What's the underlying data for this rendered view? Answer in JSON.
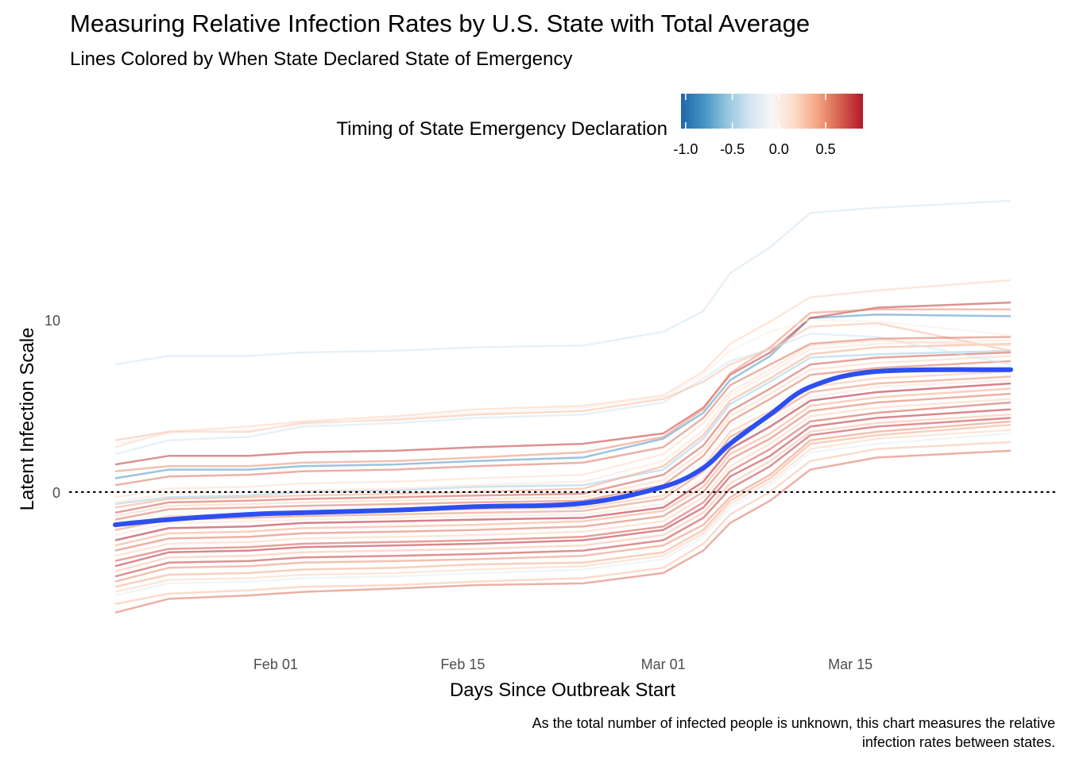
{
  "title": "Measuring Relative Infection Rates by U.S. State with Total Average",
  "subtitle": "Lines Colored by When State Declared State of Emergency",
  "caption_lines": [
    "As the total number of infected people is unknown, this chart measures the relative",
    "infection rates between states."
  ],
  "chart_data": {
    "type": "line",
    "title": "Measuring Relative Infection Rates by U.S. State with Total Average",
    "subtitle": "Lines Colored by When State Declared State of Emergency",
    "xlabel": "Days Since Outbreak Start",
    "ylabel": "Latent Infection Scale",
    "x_ticks": [
      {
        "date": "2020-02-01",
        "label": "Feb 01"
      },
      {
        "date": "2020-02-15",
        "label": "Feb 15"
      },
      {
        "date": "2020-03-01",
        "label": "Mar 01"
      },
      {
        "date": "2020-03-15",
        "label": "Mar 15"
      }
    ],
    "y_ticks": [
      0,
      10
    ],
    "xlim": [
      "2020-01-20",
      "2020-03-27"
    ],
    "ylim": [
      -8.3,
      17.5
    ],
    "reference_line": {
      "y": 0,
      "style": "dotted",
      "color": "#000000"
    },
    "grid": false,
    "legend": {
      "title": "Timing of State Emergency Declaration",
      "position": "top",
      "type": "colorbar",
      "ticks": [
        -1.0,
        -0.5,
        0.0,
        0.5
      ],
      "tick_labels": [
        "-1.0",
        "-0.5",
        "0.0",
        "0.5"
      ],
      "range": [
        -1.05,
        0.9
      ],
      "colors": [
        "#2166ac",
        "#4393c3",
        "#92c5de",
        "#d1e5f0",
        "#f7f7f7",
        "#fddbc7",
        "#f4a582",
        "#d6604d",
        "#b2182b"
      ]
    },
    "dates": [
      "2020-01-20",
      "2020-01-24",
      "2020-01-30",
      "2020-02-03",
      "2020-02-10",
      "2020-02-16",
      "2020-02-24",
      "2020-03-01",
      "2020-03-04",
      "2020-03-06",
      "2020-03-09",
      "2020-03-12",
      "2020-03-17",
      "2020-03-27"
    ],
    "average": {
      "name": "Total Average",
      "color": "#2d4ff0",
      "values": [
        -1.9,
        -1.6,
        -1.3,
        -1.2,
        -1.05,
        -0.85,
        -0.65,
        0.3,
        1.4,
        2.8,
        4.5,
        6.1,
        7.0,
        7.1
      ]
    },
    "series": [
      {
        "timing": -0.3,
        "values": [
          7.4,
          7.9,
          7.9,
          8.1,
          8.2,
          8.4,
          8.5,
          9.3,
          10.5,
          12.7,
          14.2,
          16.2,
          16.5,
          16.9
        ]
      },
      {
        "timing": 0.6,
        "values": [
          -7.0,
          -6.2,
          -6.0,
          -5.8,
          -5.6,
          -5.4,
          -5.3,
          -4.7,
          -3.4,
          -1.8,
          -0.5,
          1.3,
          2.0,
          2.4
        ]
      },
      {
        "timing": 0.3,
        "values": [
          -6.5,
          -5.9,
          -5.7,
          -5.5,
          -5.4,
          -5.2,
          -5.0,
          -4.4,
          -3.0,
          -1.3,
          0.0,
          1.8,
          2.5,
          2.9
        ]
      },
      {
        "timing": -0.2,
        "values": [
          -6.0,
          -5.3,
          -5.2,
          -5.0,
          -4.9,
          -4.7,
          -4.5,
          -3.9,
          -2.6,
          -0.9,
          0.4,
          2.3,
          2.8,
          3.4
        ]
      },
      {
        "timing": 0.2,
        "values": [
          -5.8,
          -5.1,
          -5.0,
          -4.8,
          -4.7,
          -4.5,
          -4.3,
          -3.7,
          -2.4,
          -0.7,
          0.6,
          2.5,
          3.1,
          3.6
        ]
      },
      {
        "timing": 0.4,
        "values": [
          -5.5,
          -4.8,
          -4.7,
          -4.5,
          -4.4,
          -4.2,
          -4.1,
          -3.5,
          -2.2,
          -0.5,
          0.8,
          2.8,
          3.3,
          3.9
        ]
      },
      {
        "timing": 0.5,
        "values": [
          -5.2,
          -4.4,
          -4.3,
          -4.1,
          -4.0,
          -3.9,
          -3.7,
          -3.1,
          -1.9,
          -0.3,
          1.0,
          3.0,
          3.5,
          4.1
        ]
      },
      {
        "timing": 0.8,
        "values": [
          -4.9,
          -4.1,
          -4.0,
          -3.8,
          -3.7,
          -3.6,
          -3.4,
          -2.8,
          -1.5,
          0.2,
          1.5,
          3.3,
          3.8,
          4.3
        ]
      },
      {
        "timing": 0.3,
        "values": [
          -4.6,
          -3.8,
          -3.7,
          -3.5,
          -3.4,
          -3.3,
          -3.1,
          -2.5,
          -1.2,
          0.5,
          1.8,
          3.5,
          4.0,
          4.5
        ]
      },
      {
        "timing": 0.85,
        "values": [
          -4.3,
          -3.5,
          -3.4,
          -3.2,
          -3.1,
          -3.0,
          -2.8,
          -2.2,
          -0.9,
          0.9,
          2.1,
          3.8,
          4.3,
          4.8
        ]
      },
      {
        "timing": 0.7,
        "values": [
          -4.0,
          -3.3,
          -3.2,
          -3.0,
          -2.9,
          -2.8,
          -2.6,
          -2.0,
          -0.6,
          1.2,
          2.5,
          4.1,
          4.6,
          5.2
        ]
      },
      {
        "timing": 0.2,
        "values": [
          -3.7,
          -3.0,
          -2.9,
          -2.7,
          -2.6,
          -2.5,
          -2.3,
          -1.7,
          -0.3,
          1.5,
          2.8,
          4.4,
          4.9,
          5.4
        ]
      },
      {
        "timing": 0.6,
        "values": [
          -3.4,
          -2.7,
          -2.6,
          -2.4,
          -2.3,
          -2.2,
          -2.0,
          -1.4,
          0.0,
          1.9,
          3.1,
          4.7,
          5.2,
          5.7
        ]
      },
      {
        "timing": 0.4,
        "values": [
          -3.1,
          -2.4,
          -2.3,
          -2.1,
          -2.0,
          -1.9,
          -1.7,
          -1.1,
          0.3,
          2.2,
          3.4,
          5.0,
          5.5,
          6.0
        ]
      },
      {
        "timing": 0.9,
        "values": [
          -2.8,
          -2.1,
          -2.0,
          -1.8,
          -1.7,
          -1.6,
          -1.5,
          -0.9,
          0.6,
          2.5,
          3.8,
          5.3,
          5.8,
          6.3
        ]
      },
      {
        "timing": 0.1,
        "values": [
          -2.5,
          -1.8,
          -1.7,
          -1.6,
          -1.5,
          -1.4,
          -1.3,
          -0.7,
          0.8,
          2.8,
          4.1,
          5.5,
          6.1,
          6.5
        ]
      },
      {
        "timing": 0.5,
        "values": [
          -2.2,
          -1.6,
          -1.5,
          -1.4,
          -1.3,
          -1.2,
          -1.1,
          -0.4,
          1.2,
          3.2,
          4.4,
          5.8,
          6.3,
          6.7
        ]
      },
      {
        "timing": 0.3,
        "values": [
          -2.0,
          -1.4,
          -1.3,
          -1.2,
          -1.1,
          -1.0,
          -0.9,
          -0.2,
          1.5,
          3.5,
          4.7,
          6.1,
          6.6,
          7.0
        ]
      },
      {
        "timing": -0.1,
        "values": [
          -1.8,
          -1.2,
          -1.1,
          -1.0,
          -0.9,
          -0.8,
          -0.7,
          0.1,
          1.8,
          3.8,
          5.0,
          6.4,
          6.9,
          7.3
        ]
      },
      {
        "timing": 0.6,
        "values": [
          -1.6,
          -1.0,
          -0.9,
          -0.8,
          -0.7,
          -0.6,
          -0.5,
          0.4,
          2.1,
          4.1,
          5.4,
          6.8,
          7.2,
          7.6
        ]
      },
      {
        "timing": 0.2,
        "values": [
          -1.4,
          -0.8,
          -0.7,
          -0.6,
          -0.5,
          -0.4,
          -0.3,
          0.7,
          2.4,
          4.4,
          5.7,
          7.1,
          7.5,
          7.9
        ]
      },
      {
        "timing": 0.7,
        "values": [
          -1.2,
          -0.6,
          -0.5,
          -0.4,
          -0.3,
          -0.2,
          -0.1,
          1.0,
          2.7,
          4.7,
          6.0,
          7.4,
          7.8,
          8.1
        ]
      },
      {
        "timing": -0.5,
        "values": [
          -0.7,
          -0.3,
          -0.2,
          0.0,
          0.1,
          0.3,
          0.4,
          1.3,
          3.1,
          5.1,
          6.4,
          7.8,
          8.0,
          8.2
        ]
      },
      {
        "timing": 0.4,
        "values": [
          -0.9,
          -0.4,
          -0.3,
          -0.2,
          -0.1,
          0.0,
          0.2,
          1.5,
          3.3,
          5.3,
          6.6,
          8.0,
          8.4,
          8.6
        ]
      },
      {
        "timing": 0.1,
        "values": [
          -0.6,
          -0.1,
          0.0,
          0.1,
          0.2,
          0.4,
          0.6,
          1.8,
          3.6,
          5.6,
          6.9,
          8.3,
          8.6,
          8.8
        ]
      },
      {
        "timing": -0.8,
        "values": [
          0.8,
          1.3,
          1.3,
          1.5,
          1.6,
          1.8,
          2.0,
          3.1,
          4.6,
          6.5,
          7.9,
          10.1,
          10.3,
          10.2
        ]
      },
      {
        "timing": 0.8,
        "values": [
          1.6,
          2.1,
          2.1,
          2.3,
          2.4,
          2.6,
          2.8,
          3.4,
          4.9,
          6.8,
          8.1,
          10.1,
          10.7,
          11.0
        ]
      },
      {
        "timing": 0.5,
        "values": [
          1.2,
          1.5,
          1.5,
          1.7,
          1.8,
          2.0,
          2.3,
          3.2,
          4.8,
          6.9,
          8.4,
          10.4,
          10.6,
          10.6
        ]
      },
      {
        "timing": -0.3,
        "values": [
          2.2,
          3.0,
          3.2,
          3.8,
          4.0,
          4.3,
          4.5,
          5.2,
          6.6,
          7.6,
          8.3,
          9.2,
          9.0,
          7.4
        ]
      },
      {
        "timing": 0.3,
        "values": [
          3.0,
          3.5,
          3.5,
          4.0,
          4.2,
          4.5,
          4.7,
          5.4,
          6.4,
          7.4,
          8.3,
          9.6,
          9.8,
          8.2
        ]
      },
      {
        "timing": 0.2,
        "values": [
          2.6,
          3.5,
          3.8,
          4.1,
          4.4,
          4.8,
          5.0,
          5.6,
          7.0,
          8.6,
          9.9,
          11.3,
          11.7,
          12.3
        ]
      },
      {
        "timing": 0.0,
        "values": [
          2.8,
          3.4,
          3.6,
          3.9,
          4.3,
          4.6,
          4.9,
          5.5,
          6.8,
          8.2,
          9.3,
          10.0,
          9.9,
          9.1
        ]
      },
      {
        "timing": 0.6,
        "values": [
          0.4,
          0.9,
          1.0,
          1.2,
          1.3,
          1.5,
          1.7,
          2.6,
          4.3,
          6.2,
          7.4,
          8.6,
          8.9,
          9.0
        ]
      },
      {
        "timing": 0.15,
        "values": [
          -0.3,
          0.2,
          0.3,
          0.5,
          0.6,
          0.8,
          1.0,
          2.2,
          4.0,
          5.8,
          7.1,
          8.5,
          8.8,
          8.5
        ]
      }
    ]
  }
}
